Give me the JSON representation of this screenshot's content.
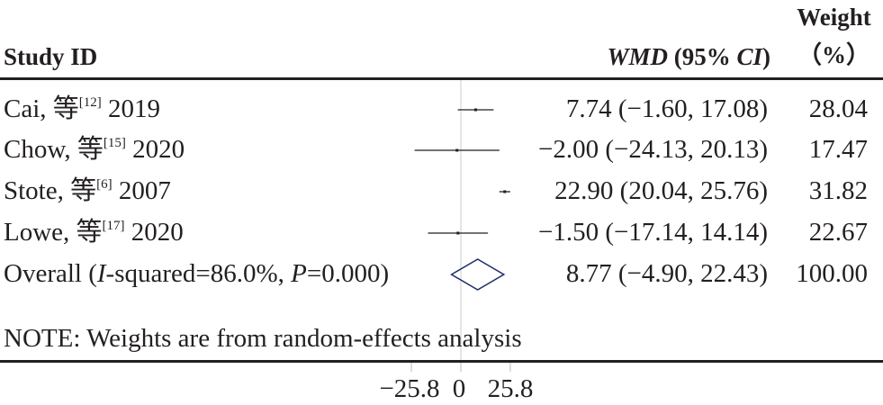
{
  "header": {
    "study_label": "Study ID",
    "effect_label_italic": "WMD",
    "effect_label_ci_open": " (95% ",
    "effect_label_ci_italic": "CI",
    "effect_label_ci_close": ")",
    "weight_label_line1": "Weight",
    "weight_label_line2": "（%）"
  },
  "studies": [
    {
      "author": "Cai, 等",
      "ref": "[12]",
      "year": " 2019",
      "ci_text": "7.74 (−1.60, 17.08)",
      "weight": "28.04"
    },
    {
      "author": "Chow, 等",
      "ref": "[15]",
      "year": " 2020",
      "ci_text": "−2.00 (−24.13, 20.13)",
      "weight": "17.47"
    },
    {
      "author": "Stote, 等",
      "ref": "[6]",
      "year": " 2007",
      "ci_text": "22.90 (20.04, 25.76)",
      "weight": "31.82"
    },
    {
      "author": "Lowe, 等",
      "ref": "[17]",
      "year": " 2020",
      "ci_text": "−1.50 (−17.14, 14.14)",
      "weight": "22.67"
    }
  ],
  "overall": {
    "label_a": "Overall (",
    "label_i": "I",
    "label_b": "-squared=86.0%, ",
    "label_p": "P",
    "label_c": "=0.000)",
    "ci_text": "8.77 (−4.90, 22.43)",
    "weight": "100.00"
  },
  "note": "NOTE: Weights are from random-effects analysis",
  "axis": {
    "ticks": [
      {
        "value": -25.8,
        "label": "−25.8"
      },
      {
        "value": 0,
        "label": "0"
      },
      {
        "value": 25.8,
        "label": "25.8"
      }
    ]
  },
  "chart_data": {
    "type": "forest",
    "measure": "WMD (95% CI)",
    "studies": [
      {
        "name": "Cai, 等[12] 2019",
        "estimate": 7.74,
        "ci_low": -1.6,
        "ci_high": 17.08,
        "weight": 28.04
      },
      {
        "name": "Chow, 等[15] 2020",
        "estimate": -2.0,
        "ci_low": -24.13,
        "ci_high": 20.13,
        "weight": 17.47
      },
      {
        "name": "Stote, 等[6] 2007",
        "estimate": 22.9,
        "ci_low": 20.04,
        "ci_high": 25.76,
        "weight": 31.82
      },
      {
        "name": "Lowe, 等[17] 2020",
        "estimate": -1.5,
        "ci_low": -17.14,
        "ci_high": 14.14,
        "weight": 22.67
      }
    ],
    "overall": {
      "estimate": 8.77,
      "ci_low": -4.9,
      "ci_high": 22.43,
      "weight": 100.0,
      "i_squared": "86.0%",
      "p": "0.000"
    },
    "x_ticks": [
      -25.8,
      0,
      25.8
    ],
    "reference_line": 0,
    "colors": {
      "text": "#231f20",
      "diamond": "#1f2d6b",
      "ci_line": "#231f20",
      "zero_line": "#cccccc"
    }
  }
}
